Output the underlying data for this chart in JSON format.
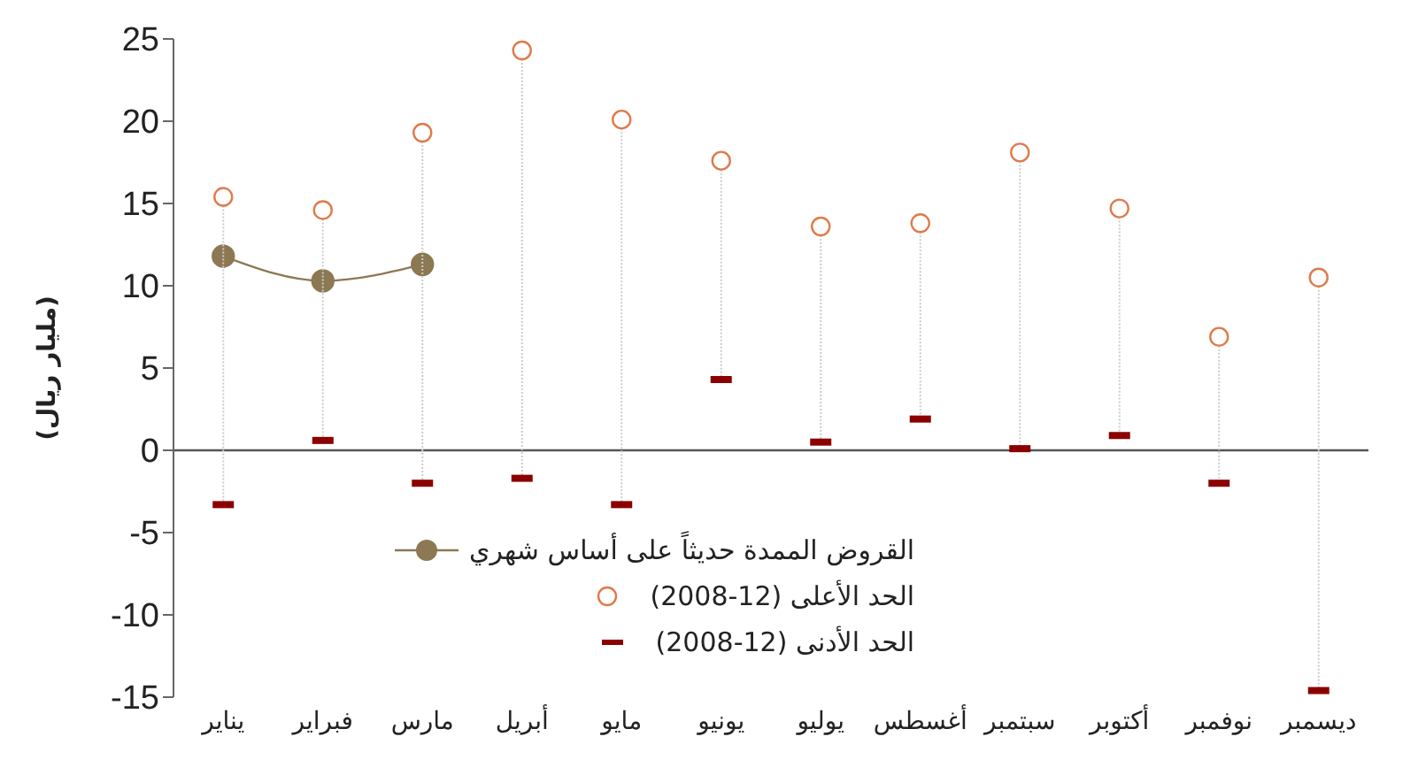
{
  "chart_data": {
    "type": "line",
    "ylabel": "(مليار ريال)",
    "categories": [
      "يناير",
      "فبراير",
      "مارس",
      "أبريل",
      "مايو",
      "يونيو",
      "يوليو",
      "أغسطس",
      "سبتمبر",
      "أكتوبر",
      "نوفمبر",
      "ديسمبر"
    ],
    "series": [
      {
        "name": "القروض الممدة حديثاً على أساس شهري",
        "marker": "circle",
        "color": "#8c7852",
        "values": [
          11.8,
          10.3,
          11.3,
          null,
          null,
          null,
          null,
          null,
          null,
          null,
          null,
          null
        ]
      },
      {
        "name": "الحد الأعلى (12-2008)",
        "type": "scatter",
        "marker": "circle",
        "color": "#e07a4a",
        "values": [
          15.4,
          14.6,
          19.3,
          24.3,
          20.1,
          17.6,
          13.6,
          13.8,
          18.1,
          14.7,
          6.9,
          10.5
        ]
      },
      {
        "name": "الحد الأدنى (12-2008)",
        "type": "scatter",
        "color": "#8b0000",
        "values": [
          -3.3,
          0.6,
          -2.0,
          -1.7,
          -3.3,
          4.3,
          0.5,
          1.9,
          0.1,
          0.9,
          -2.0,
          -14.6
        ]
      }
    ],
    "ylim": [
      -15,
      25
    ],
    "yticks": [
      -15,
      -10,
      -5,
      0,
      5,
      10,
      15,
      20,
      25
    ],
    "ref_lines": [
      {
        "axis": "y",
        "value": 0,
        "color": "#555555"
      }
    ],
    "legend": "bottom left"
  }
}
